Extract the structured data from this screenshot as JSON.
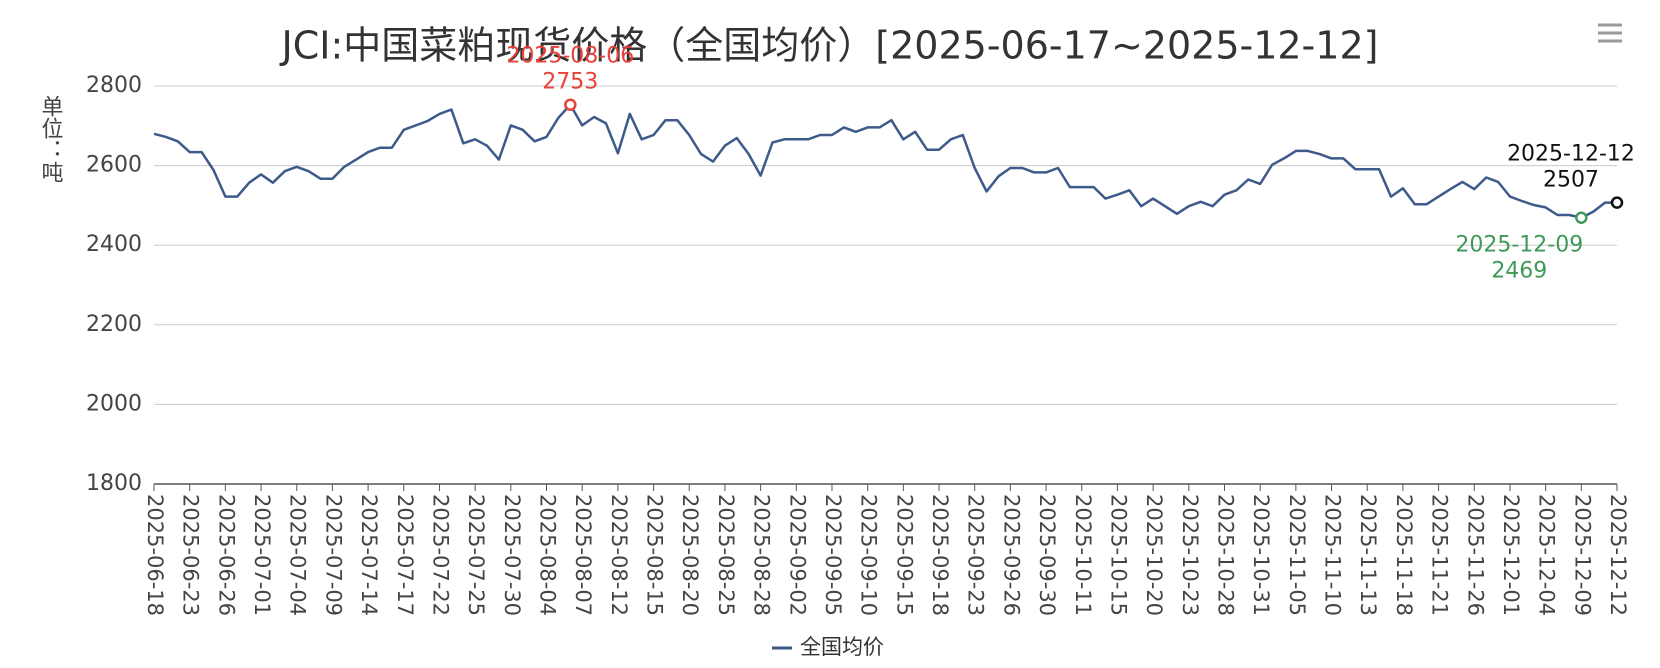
{
  "chart_data": {
    "type": "line",
    "title": "JCI:中国菜粕现货价格（全国均价）[2025-06-17~2025-12-12]",
    "y_label": "单位：吨",
    "categories": [
      "2025-06-18",
      null,
      null,
      "2025-06-23",
      null,
      null,
      "2025-06-26",
      null,
      null,
      "2025-07-01",
      null,
      null,
      "2025-07-04",
      null,
      null,
      "2025-07-09",
      null,
      null,
      "2025-07-14",
      null,
      null,
      "2025-07-17",
      null,
      null,
      "2025-07-22",
      null,
      null,
      "2025-07-25",
      null,
      null,
      "2025-07-30",
      null,
      null,
      "2025-08-04",
      null,
      null,
      "2025-08-07",
      null,
      null,
      "2025-08-12",
      null,
      null,
      "2025-08-15",
      null,
      null,
      "2025-08-20",
      null,
      null,
      "2025-08-25",
      null,
      null,
      "2025-08-28",
      null,
      null,
      "2025-09-02",
      null,
      null,
      "2025-09-05",
      null,
      null,
      "2025-09-10",
      null,
      null,
      "2025-09-15",
      null,
      null,
      "2025-09-18",
      null,
      null,
      "2025-09-23",
      null,
      null,
      "2025-09-26",
      null,
      null,
      "2025-09-30",
      null,
      null,
      "2025-10-11",
      null,
      null,
      "2025-10-15",
      null,
      null,
      "2025-10-20",
      null,
      null,
      "2025-10-23",
      null,
      null,
      "2025-10-28",
      null,
      null,
      "2025-10-31",
      null,
      null,
      "2025-11-05",
      null,
      null,
      "2025-11-10",
      null,
      null,
      "2025-11-13",
      null,
      null,
      "2025-11-18",
      null,
      null,
      "2025-11-21",
      null,
      null,
      "2025-11-26",
      null,
      null,
      "2025-12-01",
      null,
      null,
      "2025-12-04",
      null,
      null,
      "2025-12-09",
      null,
      null,
      "2025-12-12"
    ],
    "series": [
      {
        "name": "全国均价",
        "color": "#3d5a8a",
        "values": [
          2680,
          2672,
          2661,
          2634,
          2634,
          2589,
          2522,
          2522,
          2557,
          2578,
          2557,
          2586,
          2597,
          2586,
          2567,
          2567,
          2597,
          2615,
          2634,
          2645,
          2645,
          2690,
          2701,
          2712,
          2730,
          2741,
          2656,
          2666,
          2650,
          2615,
          2701,
          2690,
          2661,
          2672,
          2720,
          2753,
          2701,
          2722,
          2706,
          2631,
          2730,
          2666,
          2677,
          2714,
          2714,
          2677,
          2629,
          2610,
          2650,
          2669,
          2629,
          2575,
          2658,
          2666,
          2666,
          2666,
          2677,
          2677,
          2696,
          2685,
          2696,
          2696,
          2714,
          2666,
          2685,
          2640,
          2640,
          2666,
          2677,
          2594,
          2535,
          2573,
          2594,
          2594,
          2583,
          2583,
          2594,
          2546,
          2546,
          2546,
          2517,
          2527,
          2538,
          2498,
          2517,
          2498,
          2479,
          2498,
          2509,
          2498,
          2527,
          2538,
          2565,
          2554,
          2602,
          2618,
          2637,
          2637,
          2629,
          2618,
          2618,
          2591,
          2591,
          2591,
          2522,
          2543,
          2503,
          2503,
          2522,
          2541,
          2559,
          2541,
          2570,
          2559,
          2522,
          2511,
          2501,
          2495,
          2476,
          2476,
          2469,
          2484,
          2507,
          2507
        ]
      }
    ],
    "annotations": [
      {
        "index": 35,
        "label": "2025-08-06",
        "value": 2753,
        "color": "#e8413a"
      },
      {
        "index": 120,
        "label": "2025-12-09",
        "value": 2469,
        "color": "#3f9a5a"
      },
      {
        "index": 123,
        "label": "2025-12-12",
        "value": 2507,
        "color": "#111111"
      }
    ],
    "ylim": [
      1800,
      2800
    ],
    "yticks": [
      1800,
      2000,
      2200,
      2400,
      2600,
      2800
    ],
    "grid": true
  }
}
